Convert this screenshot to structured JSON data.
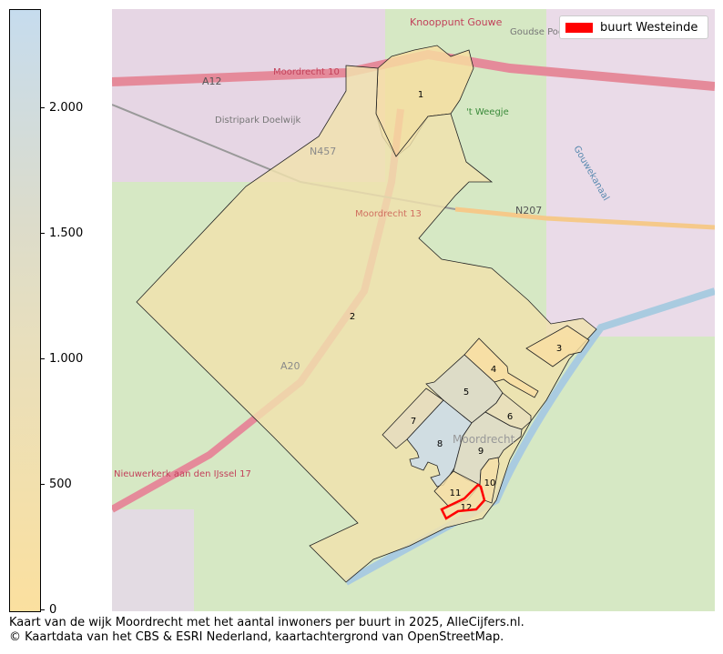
{
  "colorbar": {
    "ticks": [
      "0",
      "500",
      "1.000",
      "1.500",
      "2.000"
    ],
    "tick_values": [
      0,
      500,
      1000,
      1500,
      2000
    ],
    "max": 2400,
    "color_low": "#fbe09f",
    "color_high": "#c6dcee"
  },
  "legend": {
    "label": "buurt Westeinde",
    "color": "#ff0000"
  },
  "neighbourhoods": [
    {
      "n": "1",
      "fill": "#f7dea0"
    },
    {
      "n": "2",
      "fill": "#f0e2ad"
    },
    {
      "n": "3",
      "fill": "#f9dea2"
    },
    {
      "n": "4",
      "fill": "#f9dea2"
    },
    {
      "n": "5",
      "fill": "#d9dbcc"
    },
    {
      "n": "6",
      "fill": "#e8dfbd"
    },
    {
      "n": "7",
      "fill": "#e5dcc0"
    },
    {
      "n": "8",
      "fill": "#c9dced"
    },
    {
      "n": "9",
      "fill": "#dcdccb"
    },
    {
      "n": "10",
      "fill": "#f5dfa8"
    },
    {
      "n": "11",
      "fill": "#f5dfa8"
    },
    {
      "n": "12",
      "fill": "#f5dfa8"
    }
  ],
  "basemap_labels": [
    "A12",
    "Moordrecht 10",
    "Knooppunt Gouwe",
    "Goudse Poort",
    "Distripark Doelwijk",
    "N457",
    "N207",
    "'t Weegje",
    "Moordrecht 13",
    "Moordrecht",
    "A20",
    "Nieuwerkerk aan den IJssel 17",
    "Gouwekanaal"
  ],
  "caption": {
    "line1": "Kaart van de wijk Moordrecht met het aantal inwoners per buurt in 2025, AlleCijfers.nl.",
    "line2": "© Kaartdata van het CBS & ESRI Nederland, kaartachtergrond van OpenStreetMap."
  }
}
